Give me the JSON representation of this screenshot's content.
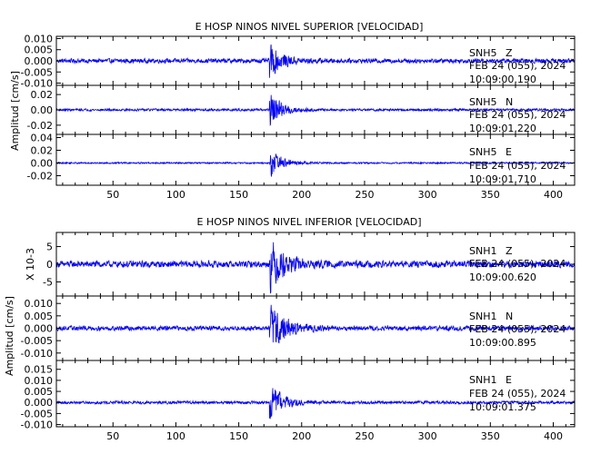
{
  "chart_data": [
    {
      "type": "line",
      "title": "E HOSP NINOS NIVEL SUPERIOR [VELOCIDAD]",
      "ylabel": "Amplitud [cm/s]",
      "ylabel_multiplier": "",
      "xlim": [
        5,
        417
      ],
      "x_ticks": [
        50,
        100,
        150,
        200,
        250,
        300,
        350,
        400
      ],
      "x_tick_labels": [
        "50",
        "100",
        "150",
        "200",
        "250",
        "300",
        "350",
        "400"
      ],
      "series_color": "#0000ff",
      "event_onset": 174.5,
      "traces": [
        {
          "station": "SNH5",
          "component": "Z",
          "date": "FEB 24 (055), 2024",
          "time": "10:09:00.190",
          "ylim": [
            -0.011,
            0.011
          ],
          "y_ticks": [
            0.01,
            0.005,
            0.0,
            -0.005,
            -0.01
          ],
          "y_tick_labels": [
            "0.010",
            "0.005",
            "0.000",
            "-0.005",
            "-0.010"
          ],
          "noise_amplitude": 0.0012,
          "peak_amplitude": 0.0095,
          "decay_seconds": 9
        },
        {
          "station": "SNH5",
          "component": "N",
          "date": "FEB 24 (055), 2024",
          "time": "10:09:01.220",
          "ylim": [
            -0.032,
            0.032
          ],
          "y_ticks": [
            0.02,
            0.0,
            -0.02
          ],
          "y_tick_labels": [
            "0.02",
            "0.00",
            "-0.02"
          ],
          "noise_amplitude": 0.0018,
          "peak_amplitude": 0.028,
          "decay_seconds": 9
        },
        {
          "station": "SNH5",
          "component": "E",
          "date": "FEB 24 (055), 2024",
          "time": "10:09:01.710",
          "ylim": [
            -0.035,
            0.045
          ],
          "y_ticks": [
            0.04,
            0.02,
            0.0,
            -0.02
          ],
          "y_tick_labels": [
            "0.04",
            "0.02",
            "0.00",
            "-0.02"
          ],
          "noise_amplitude": 0.0015,
          "peak_amplitude": 0.03,
          "decay_seconds": 9
        }
      ]
    },
    {
      "type": "line",
      "title": "E HOSP NINOS NIVEL INFERIOR [VELOCIDAD]",
      "ylabel": "Amplitud [cm/s]",
      "ylabel_multiplier": "X 10-3",
      "xlim": [
        5,
        417
      ],
      "x_ticks": [
        50,
        100,
        150,
        200,
        250,
        300,
        350,
        400
      ],
      "x_tick_labels": [
        "50",
        "100",
        "150",
        "200",
        "250",
        "300",
        "350",
        "400"
      ],
      "series_color": "#0000ff",
      "event_onset": 174.5,
      "traces": [
        {
          "station": "SNH1",
          "component": "Z",
          "date": "FEB 24 (055), 2024",
          "time": "10:09:00.620",
          "ylim": [
            -9,
            9
          ],
          "y_ticks": [
            5,
            0,
            -5
          ],
          "y_tick_labels": [
            "5",
            "0",
            "-5"
          ],
          "noise_amplitude": 1.1,
          "peak_amplitude": 8.5,
          "decay_seconds": 12
        },
        {
          "station": "SNH1",
          "component": "N",
          "date": "FEB 24 (055), 2024",
          "time": "10:09:00.895",
          "ylim": [
            -0.013,
            0.013
          ],
          "y_ticks": [
            0.01,
            0.005,
            0.0,
            -0.005,
            -0.01
          ],
          "y_tick_labels": [
            "0.010",
            "0.005",
            "0.000",
            "-0.005",
            "-0.010"
          ],
          "noise_amplitude": 0.0011,
          "peak_amplitude": 0.0115,
          "decay_seconds": 12
        },
        {
          "station": "SNH1",
          "component": "E",
          "date": "FEB 24 (055), 2024",
          "time": "10:09:01.375",
          "ylim": [
            -0.011,
            0.019
          ],
          "y_ticks": [
            0.015,
            0.01,
            0.005,
            0.0,
            -0.005,
            -0.01
          ],
          "y_tick_labels": [
            "0.015",
            "0.010",
            "0.005",
            "0.000",
            "-0.005",
            "-0.010"
          ],
          "noise_amplitude": 0.0008,
          "peak_amplitude": 0.0095,
          "decay_seconds": 11
        }
      ]
    }
  ]
}
